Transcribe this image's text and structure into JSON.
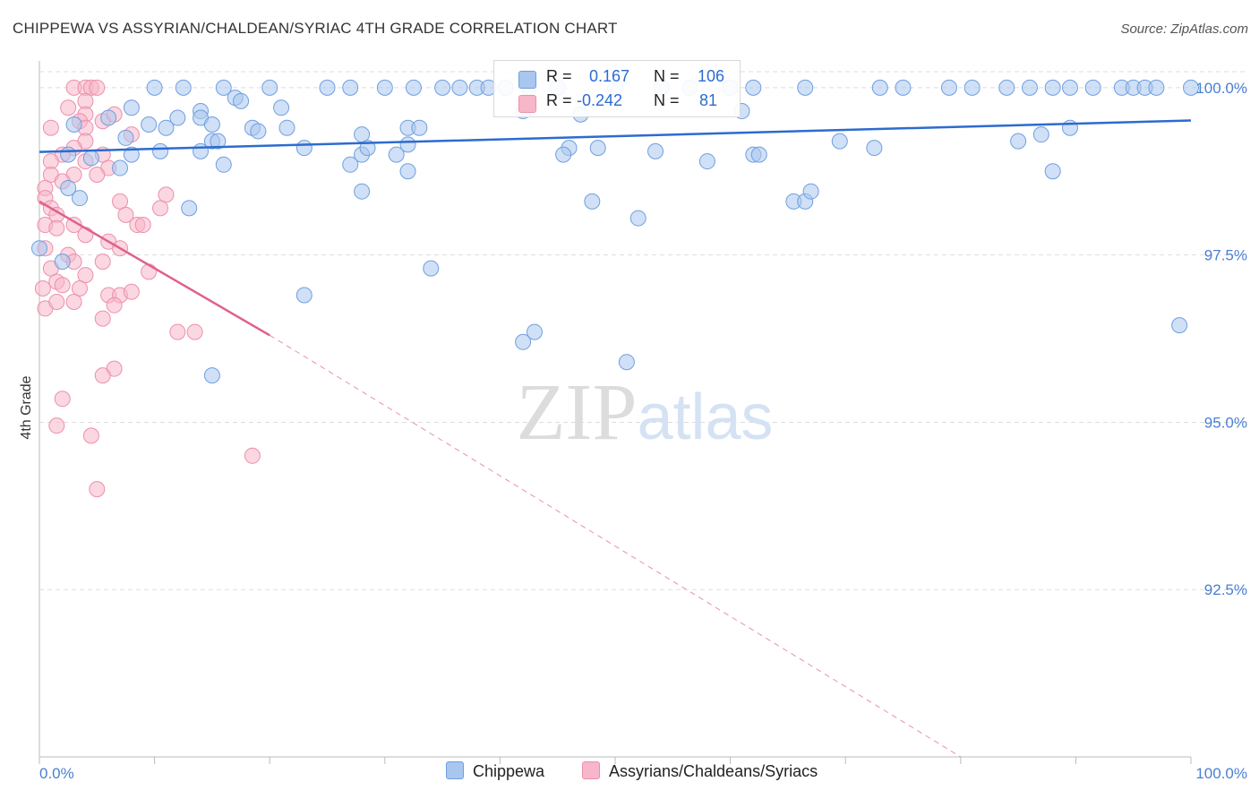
{
  "title": "CHIPPEWA VS ASSYRIAN/CHALDEAN/SYRIAC 4TH GRADE CORRELATION CHART",
  "source": "Source: ZipAtlas.com",
  "watermark": "ZIPatlas",
  "legend_box": {
    "rows": [
      {
        "r_label": "R =",
        "r_value": "0.167",
        "n_label": "N =",
        "n_value": "106"
      },
      {
        "r_label": "R =",
        "r_value": "-0.242",
        "n_label": "N =",
        "n_value": "81"
      }
    ]
  },
  "bottom_legend": [
    "Chippewa",
    "Assyrians/Chaldeans/Syriacs"
  ],
  "colors": {
    "chippewa_fill": "#a9c6ef",
    "chippewa_stroke": "#6f9fe0",
    "chippewa_line": "#2d6bd0",
    "assyrian_fill": "#f7b6c9",
    "assyrian_stroke": "#ec8fac",
    "assyrian_line": "#e0608e",
    "grid": "#dddddd",
    "tick_text": "#4a7fd4"
  },
  "chart_data": {
    "type": "scatter",
    "title": "CHIPPEWA VS ASSYRIAN/CHALDEAN/SYRIAC 4TH GRADE CORRELATION CHART",
    "xlabel": "",
    "ylabel": "4th Grade",
    "xlim": [
      0,
      100
    ],
    "ylim": [
      90.0,
      100.4
    ],
    "x_tick_labels": [
      "0.0%",
      "100.0%"
    ],
    "y_ticks": [
      {
        "value": 100.0,
        "label": "100.0%"
      },
      {
        "value": 97.5,
        "label": "97.5%"
      },
      {
        "value": 95.0,
        "label": "95.0%"
      },
      {
        "value": 92.5,
        "label": "92.5%"
      }
    ],
    "series": [
      {
        "name": "Chippewa",
        "R": 0.167,
        "N": 106,
        "trend": {
          "x": [
            0,
            100
          ],
          "y": [
            99.04,
            99.51
          ],
          "style": "solid"
        },
        "points": [
          [
            10,
            100
          ],
          [
            12.5,
            100
          ],
          [
            16,
            100
          ],
          [
            20,
            100
          ],
          [
            25,
            100
          ],
          [
            27,
            100
          ],
          [
            30,
            100
          ],
          [
            32.5,
            100
          ],
          [
            35,
            100
          ],
          [
            36.5,
            100
          ],
          [
            38,
            100
          ],
          [
            39,
            100
          ],
          [
            40.5,
            100
          ],
          [
            42.5,
            100
          ],
          [
            45,
            100
          ],
          [
            50,
            100
          ],
          [
            54,
            100
          ],
          [
            56.5,
            100
          ],
          [
            60,
            100
          ],
          [
            62,
            100
          ],
          [
            66.5,
            100
          ],
          [
            73,
            100
          ],
          [
            75,
            100
          ],
          [
            79,
            100
          ],
          [
            81,
            100
          ],
          [
            84,
            100
          ],
          [
            86,
            100
          ],
          [
            88,
            100
          ],
          [
            89.5,
            100
          ],
          [
            91.5,
            100
          ],
          [
            94,
            100
          ],
          [
            95,
            100
          ],
          [
            96,
            100
          ],
          [
            97,
            100
          ],
          [
            100,
            100
          ],
          [
            17,
            99.85
          ],
          [
            17.5,
            99.8
          ],
          [
            21,
            99.7
          ],
          [
            8,
            99.7
          ],
          [
            14,
            99.65
          ],
          [
            42,
            99.65
          ],
          [
            61,
            99.65
          ],
          [
            47,
            99.6
          ],
          [
            12,
            99.55
          ],
          [
            14,
            99.55
          ],
          [
            6,
            99.55
          ],
          [
            15,
            99.45
          ],
          [
            3,
            99.45
          ],
          [
            9.5,
            99.45
          ],
          [
            11,
            99.4
          ],
          [
            18.5,
            99.4
          ],
          [
            19,
            99.35
          ],
          [
            21.5,
            99.4
          ],
          [
            32,
            99.4
          ],
          [
            33,
            99.4
          ],
          [
            28,
            99.3
          ],
          [
            32,
            99.15
          ],
          [
            15,
            99.2
          ],
          [
            7.5,
            99.25
          ],
          [
            15.5,
            99.2
          ],
          [
            46,
            99.1
          ],
          [
            48.5,
            99.1
          ],
          [
            62,
            99.0
          ],
          [
            62.5,
            99.0
          ],
          [
            69.5,
            99.2
          ],
          [
            72.5,
            99.1
          ],
          [
            85,
            99.2
          ],
          [
            87,
            99.3
          ],
          [
            89.5,
            99.4
          ],
          [
            2.5,
            99.0
          ],
          [
            4.5,
            98.95
          ],
          [
            8,
            99.0
          ],
          [
            10.5,
            99.05
          ],
          [
            14,
            99.05
          ],
          [
            23,
            99.1
          ],
          [
            28,
            99.0
          ],
          [
            28.5,
            99.1
          ],
          [
            31,
            99.0
          ],
          [
            45.5,
            99.0
          ],
          [
            53.5,
            99.05
          ],
          [
            58,
            98.9
          ],
          [
            7,
            98.8
          ],
          [
            16,
            98.85
          ],
          [
            27,
            98.85
          ],
          [
            32,
            98.75
          ],
          [
            88,
            98.75
          ],
          [
            2.5,
            98.5
          ],
          [
            3.5,
            98.35
          ],
          [
            13,
            98.2
          ],
          [
            28,
            98.45
          ],
          [
            48,
            98.3
          ],
          [
            65.5,
            98.3
          ],
          [
            66.5,
            98.3
          ],
          [
            67,
            98.45
          ],
          [
            52,
            98.05
          ],
          [
            2,
            97.4
          ],
          [
            34,
            97.3
          ],
          [
            23,
            96.9
          ],
          [
            43,
            96.35
          ],
          [
            51,
            95.9
          ],
          [
            99,
            96.45
          ],
          [
            42,
            96.2
          ],
          [
            15,
            95.7
          ],
          [
            0,
            97.6
          ]
        ]
      },
      {
        "name": "Assyrians/Chaldeans/Syriacs",
        "R": -0.242,
        "N": 81,
        "trend": {
          "x": [
            0,
            20
          ],
          "y": [
            98.3,
            96.3
          ],
          "style": "solid",
          "extension": {
            "x": [
              20,
              80
            ],
            "y": [
              96.3,
              90.0
            ],
            "style": "dashed"
          }
        },
        "points": [
          [
            3,
            100
          ],
          [
            4,
            100
          ],
          [
            4.5,
            100
          ],
          [
            5,
            100
          ],
          [
            4,
            99.8
          ],
          [
            2.5,
            99.7
          ],
          [
            4,
            99.6
          ],
          [
            5.5,
            99.5
          ],
          [
            6.5,
            99.6
          ],
          [
            3.5,
            99.5
          ],
          [
            1,
            99.4
          ],
          [
            4,
            99.4
          ],
          [
            8,
            99.3
          ],
          [
            4,
            99.2
          ],
          [
            3,
            99.1
          ],
          [
            5.5,
            99.0
          ],
          [
            2,
            99.0
          ],
          [
            1,
            98.9
          ],
          [
            4,
            98.9
          ],
          [
            6,
            98.8
          ],
          [
            1,
            98.7
          ],
          [
            3,
            98.7
          ],
          [
            5,
            98.7
          ],
          [
            2,
            98.6
          ],
          [
            0.5,
            98.5
          ],
          [
            0.5,
            98.35
          ],
          [
            1,
            98.2
          ],
          [
            1.5,
            98.1
          ],
          [
            7,
            98.3
          ],
          [
            11,
            98.4
          ],
          [
            10.5,
            98.2
          ],
          [
            7.5,
            98.1
          ],
          [
            8.5,
            97.95
          ],
          [
            9,
            97.95
          ],
          [
            0.5,
            97.95
          ],
          [
            1.5,
            97.9
          ],
          [
            3,
            97.95
          ],
          [
            4,
            97.8
          ],
          [
            6,
            97.7
          ],
          [
            7,
            97.6
          ],
          [
            0.5,
            97.6
          ],
          [
            2.5,
            97.5
          ],
          [
            3,
            97.4
          ],
          [
            1,
            97.3
          ],
          [
            4,
            97.2
          ],
          [
            5.5,
            97.4
          ],
          [
            1.5,
            97.1
          ],
          [
            2,
            97.05
          ],
          [
            3.5,
            97.0
          ],
          [
            6,
            96.9
          ],
          [
            7,
            96.9
          ],
          [
            8,
            96.95
          ],
          [
            0.5,
            96.7
          ],
          [
            1.5,
            96.8
          ],
          [
            3,
            96.8
          ],
          [
            6.5,
            96.75
          ],
          [
            9.5,
            97.25
          ],
          [
            0.3,
            97.0
          ],
          [
            5.5,
            96.55
          ],
          [
            12,
            96.35
          ],
          [
            13.5,
            96.35
          ],
          [
            6.5,
            95.8
          ],
          [
            5.5,
            95.7
          ],
          [
            2,
            95.35
          ],
          [
            1.5,
            94.95
          ],
          [
            4.5,
            94.8
          ],
          [
            18.5,
            94.5
          ],
          [
            5,
            94.0
          ]
        ]
      }
    ],
    "watermark": "ZIPatlas"
  }
}
